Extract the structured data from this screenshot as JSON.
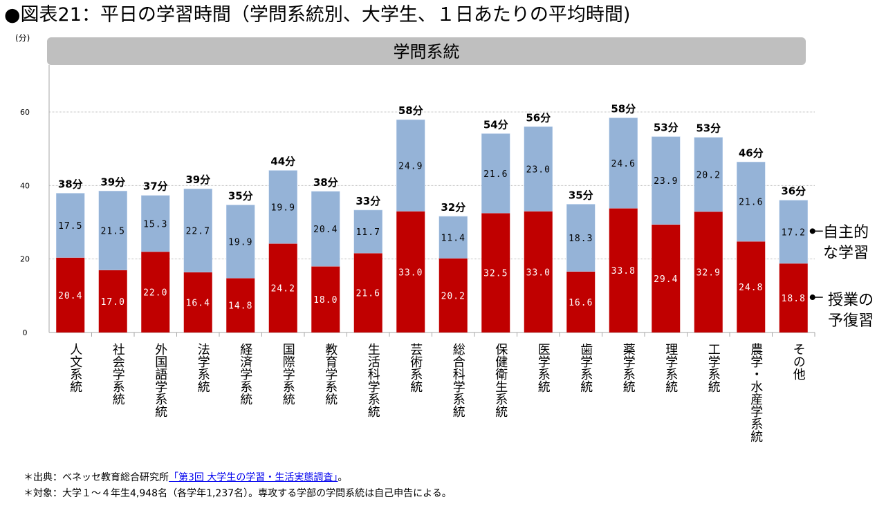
{
  "title": "●図表21：平日の学習時間（学問系統別、大学生、１日あたりの平均時間)",
  "banner": "学問系統",
  "footnotes": {
    "source_prefix": "＊出典：ベネッセ教育総合研究所",
    "source_link": "「第3回 大学生の学習・生活実態調査」",
    "source_suffix": "。",
    "target": "＊対象：大学１～４年生4,948名（各学年1,237名）。専攻する学部の学問系統は自己申告による。"
  },
  "colors": {
    "lesson": "#c00000",
    "self": "#95b3d7"
  },
  "chart_data": {
    "type": "bar",
    "stacked": true,
    "title": "平日の学習時間（学問系統別、大学生、１日あたりの平均時間)",
    "xlabel": "学問系統",
    "ylabel": "(分)",
    "ylim": [
      0,
      70
    ],
    "yticks": [
      0,
      20,
      40,
      60
    ],
    "grid": true,
    "legend_position": "right",
    "categories": [
      "人文系統",
      "社会学系統",
      "外国語学系統",
      "法学系統",
      "経済学系統",
      "国際学系統",
      "教育学系統",
      "生活科学系統",
      "芸術系統",
      "総合科学系統",
      "保健衛生系統",
      "医学系統",
      "歯学系統",
      "薬学系統",
      "理学系統",
      "工学系統",
      "農学・水産学系統",
      "その他"
    ],
    "series": [
      {
        "name": "授業の予復習",
        "values": [
          20.4,
          17.0,
          22.0,
          16.4,
          14.8,
          24.2,
          18.0,
          21.6,
          33.0,
          20.2,
          32.5,
          33.0,
          16.6,
          33.8,
          29.4,
          32.9,
          24.8,
          18.8
        ]
      },
      {
        "name": "自主的な学習",
        "values": [
          17.5,
          21.5,
          15.3,
          22.7,
          19.9,
          19.9,
          20.4,
          11.7,
          24.9,
          11.4,
          21.6,
          23.0,
          18.3,
          24.6,
          23.9,
          20.2,
          21.6,
          17.2
        ]
      }
    ],
    "totals": [
      "38分",
      "39分",
      "37分",
      "39分",
      "35分",
      "44分",
      "38分",
      "33分",
      "58分",
      "32分",
      "54分",
      "56分",
      "35分",
      "58分",
      "53分",
      "53分",
      "46分",
      "36分"
    ],
    "legend": [
      "自主的\nな学習",
      "授業の\n予復習"
    ]
  }
}
